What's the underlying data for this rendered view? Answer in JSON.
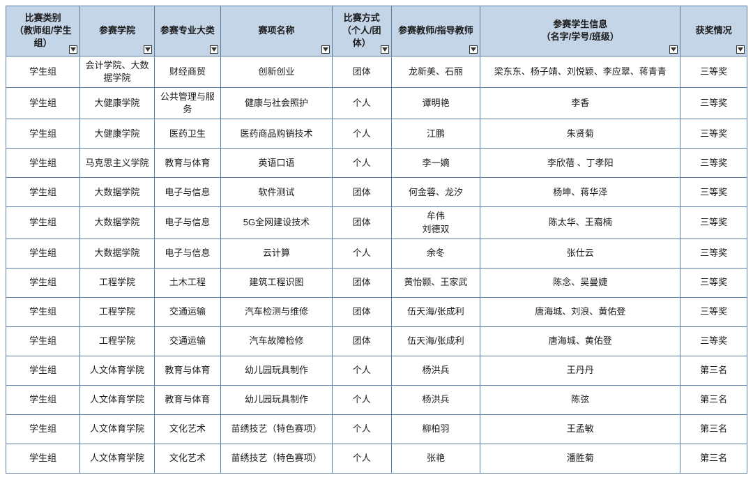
{
  "table": {
    "header_bg": "#c5d5e8",
    "border_color": "#5b7ba0",
    "font_size": 13,
    "columns": [
      {
        "label": "比赛类别\n（教师组/学生组）",
        "filter": true,
        "width": "10%"
      },
      {
        "label": "参赛学院",
        "filter": true,
        "width": "10%"
      },
      {
        "label": "参赛专业大类",
        "filter": true,
        "width": "9%"
      },
      {
        "label": "赛项名称",
        "filter": true,
        "width": "15%"
      },
      {
        "label": "比赛方式\n（个人/团体）",
        "filter": true,
        "width": "8%"
      },
      {
        "label": "参赛教师/指导教师",
        "filter": true,
        "width": "12%"
      },
      {
        "label": "参赛学生信息\n（名字/学号/班级）",
        "filter": true,
        "width": "27%"
      },
      {
        "label": "获奖情况",
        "filter": true,
        "width": "9%"
      }
    ],
    "rows": [
      [
        "学生组",
        "会计学院、大数据学院",
        "财经商贸",
        "创新创业",
        "团体",
        "龙新美、石丽",
        "梁东东、杨子靖、刘悦颖、李应翠、蒋青青",
        "三等奖"
      ],
      [
        "学生组",
        "大健康学院",
        "公共管理与服务",
        "健康与社会照护",
        "个人",
        "谭明艳",
        "李香",
        "三等奖"
      ],
      [
        "学生组",
        "大健康学院",
        "医药卫生",
        "医药商品购销技术",
        "个人",
        "江鹏",
        "朱贤菊",
        "三等奖"
      ],
      [
        "学生组",
        "马克思主义学院",
        "教育与体育",
        "英语口语",
        "个人",
        "李一嫡",
        "李欣蓓 、丁孝阳",
        "三等奖"
      ],
      [
        "学生组",
        "大数据学院",
        "电子与信息",
        "软件测试",
        "团体",
        "何金蓉、龙汐",
        "杨坤、蒋华泽",
        "三等奖"
      ],
      [
        "学生组",
        "大数据学院",
        "电子与信息",
        "5G全网建设技术",
        "团体",
        "牟伟\n刘德双",
        "陈太华、王裔楠",
        "三等奖"
      ],
      [
        "学生组",
        "大数据学院",
        "电子与信息",
        "云计算",
        "个人",
        "余冬",
        "张仕云",
        "三等奖"
      ],
      [
        "学生组",
        "工程学院",
        "土木工程",
        "建筑工程识图",
        "团体",
        "黄怡颢、王家武",
        "陈念、吴曼婕",
        "三等奖"
      ],
      [
        "学生组",
        "工程学院",
        "交通运输",
        "汽车检测与维修",
        "团体",
        "伍天海/张成利",
        "唐海城、刘浪、黄佑登",
        "三等奖"
      ],
      [
        "学生组",
        "工程学院",
        "交通运输",
        "汽车故障检修",
        "团体",
        "伍天海/张成利",
        "唐海城、黄佑登",
        "三等奖"
      ],
      [
        "学生组",
        "人文体育学院",
        "教育与体育",
        "幼儿园玩具制作",
        "个人",
        "杨洪兵",
        "王丹丹",
        "第三名"
      ],
      [
        "学生组",
        "人文体育学院",
        "教育与体育",
        "幼儿园玩具制作",
        "个人",
        "杨洪兵",
        "陈弦",
        "第三名"
      ],
      [
        "学生组",
        "人文体育学院",
        "文化艺术",
        "苗绣技艺（特色赛项）",
        "个人",
        "柳柏羽",
        "王孟敏",
        "第三名"
      ],
      [
        "学生组",
        "人文体育学院",
        "文化艺术",
        "苗绣技艺（特色赛项）",
        "个人",
        "张艳",
        "潘胜菊",
        "第三名"
      ]
    ]
  }
}
